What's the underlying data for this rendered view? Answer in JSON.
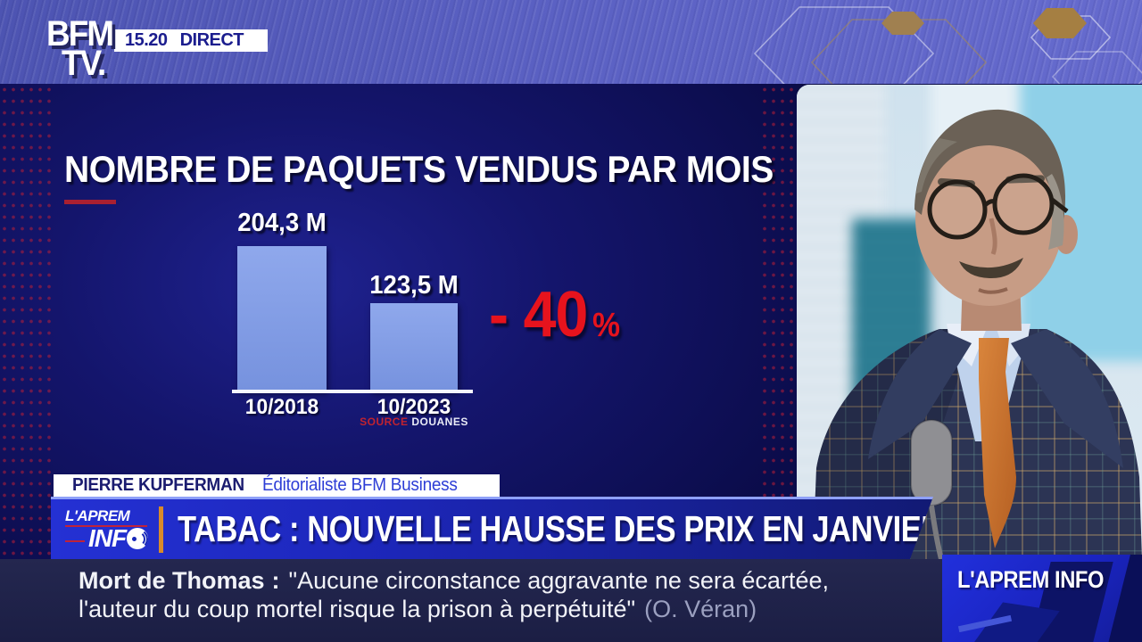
{
  "channel": {
    "logo_top": "BFM",
    "logo_bottom": "TV.",
    "time": "15.20",
    "live": "DIRECT"
  },
  "chart_data": {
    "type": "bar",
    "title": "NOMBRE DE PAQUETS VENDUS PAR MOIS",
    "categories": [
      "10/2018",
      "10/2023"
    ],
    "values": [
      204.3,
      123.5
    ],
    "value_labels": [
      "204,3 M",
      "123,5 M"
    ],
    "ylim": [
      0,
      204.3
    ],
    "grid": false,
    "legend": false,
    "change_label": "- 40",
    "change_pct": "%",
    "source_label": "SOURCE",
    "source_value": "DOUANES",
    "bar_color": "#7692de",
    "bar_color_top": "#8fa8ec",
    "accent_red": "#e6131d"
  },
  "caption": {
    "name": "PIERRE KUPFERMAN",
    "role": "Éditorialiste BFM Business"
  },
  "banner": {
    "badge_line1": "L'APREM",
    "badge_line2_text": "INF",
    "badge_line2_icon": "sound-wave-o-icon",
    "headline": "TABAC : NOUVELLE HAUSSE DES PRIX EN JANVIER",
    "banner_blue": "#2431d4",
    "divider_orange": "#d98a2a"
  },
  "ticker": {
    "topic": "Mort de Thomas",
    "separator": ":",
    "quote_line1": "\"Aucune circonstance aggravante ne sera écartée,",
    "quote_line2": "l'auteur du coup mortel risque la prison à perpétuité\"",
    "attribution": "(O. Véran)"
  },
  "corner": {
    "label": "L'APREM INFO"
  }
}
